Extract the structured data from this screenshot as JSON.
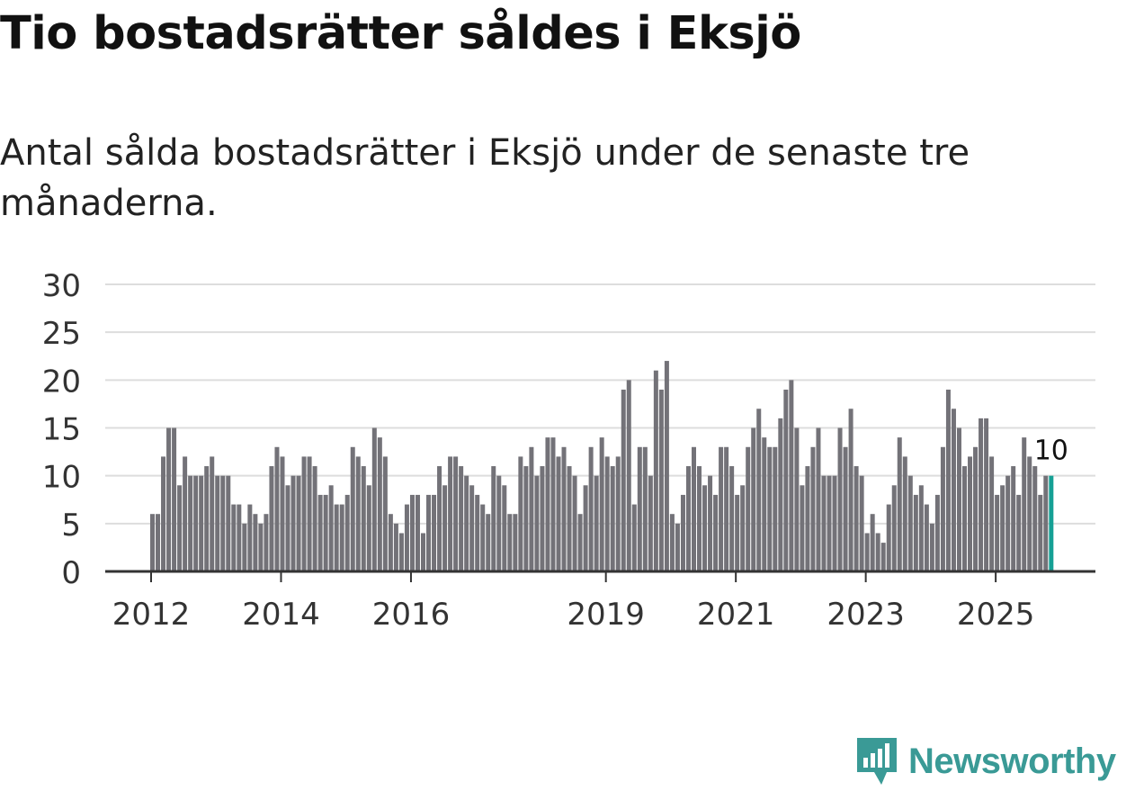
{
  "title": "Tio bostadsrätter såldes i Eksjö",
  "subtitle": "Antal sålda bostadsrätter i Eksjö under de senaste tre månaderna.",
  "brand": {
    "name": "Newsworthy",
    "icon": "newsworthy-logo-icon",
    "color": "#3a9a96"
  },
  "chart_data": {
    "type": "bar",
    "title": "Tio bostadsrätter såldes i Eksjö",
    "subtitle": "Antal sålda bostadsrätter i Eksjö under de senaste tre månaderna.",
    "xlabel": "",
    "ylabel": "",
    "ylim": [
      0,
      30
    ],
    "yticks": [
      0,
      5,
      10,
      15,
      20,
      25,
      30
    ],
    "grid": true,
    "x_start": "2012-01",
    "xticks": [
      {
        "label": "2012",
        "index": 0
      },
      {
        "label": "2014",
        "index": 24
      },
      {
        "label": "2016",
        "index": 48
      },
      {
        "label": "2019",
        "index": 84
      },
      {
        "label": "2021",
        "index": 108
      },
      {
        "label": "2023",
        "index": 132
      },
      {
        "label": "2025",
        "index": 156
      }
    ],
    "bar_color": "#737278",
    "highlight_color": "#16a095",
    "highlight_label": "10",
    "values": [
      6,
      6,
      12,
      15,
      15,
      9,
      12,
      10,
      10,
      10,
      11,
      12,
      10,
      10,
      10,
      7,
      7,
      5,
      7,
      6,
      5,
      6,
      11,
      13,
      12,
      9,
      10,
      10,
      12,
      12,
      11,
      8,
      8,
      9,
      7,
      7,
      8,
      13,
      12,
      11,
      9,
      15,
      14,
      12,
      6,
      5,
      4,
      7,
      8,
      8,
      4,
      8,
      8,
      11,
      9,
      12,
      12,
      11,
      10,
      9,
      8,
      7,
      6,
      11,
      10,
      9,
      6,
      6,
      12,
      11,
      13,
      10,
      11,
      14,
      14,
      12,
      13,
      11,
      10,
      6,
      9,
      13,
      10,
      14,
      12,
      11,
      12,
      19,
      20,
      7,
      13,
      13,
      10,
      21,
      19,
      22,
      6,
      5,
      8,
      11,
      13,
      11,
      9,
      10,
      8,
      13,
      13,
      11,
      8,
      9,
      13,
      15,
      17,
      14,
      13,
      13,
      16,
      19,
      20,
      15,
      9,
      11,
      13,
      15,
      10,
      10,
      10,
      15,
      13,
      17,
      11,
      10,
      4,
      6,
      4,
      3,
      7,
      9,
      14,
      12,
      10,
      8,
      9,
      7,
      5,
      8,
      13,
      19,
      17,
      15,
      11,
      12,
      13,
      16,
      16,
      12,
      8,
      9,
      10,
      11,
      8,
      14,
      12,
      11,
      8,
      10,
      10
    ]
  }
}
